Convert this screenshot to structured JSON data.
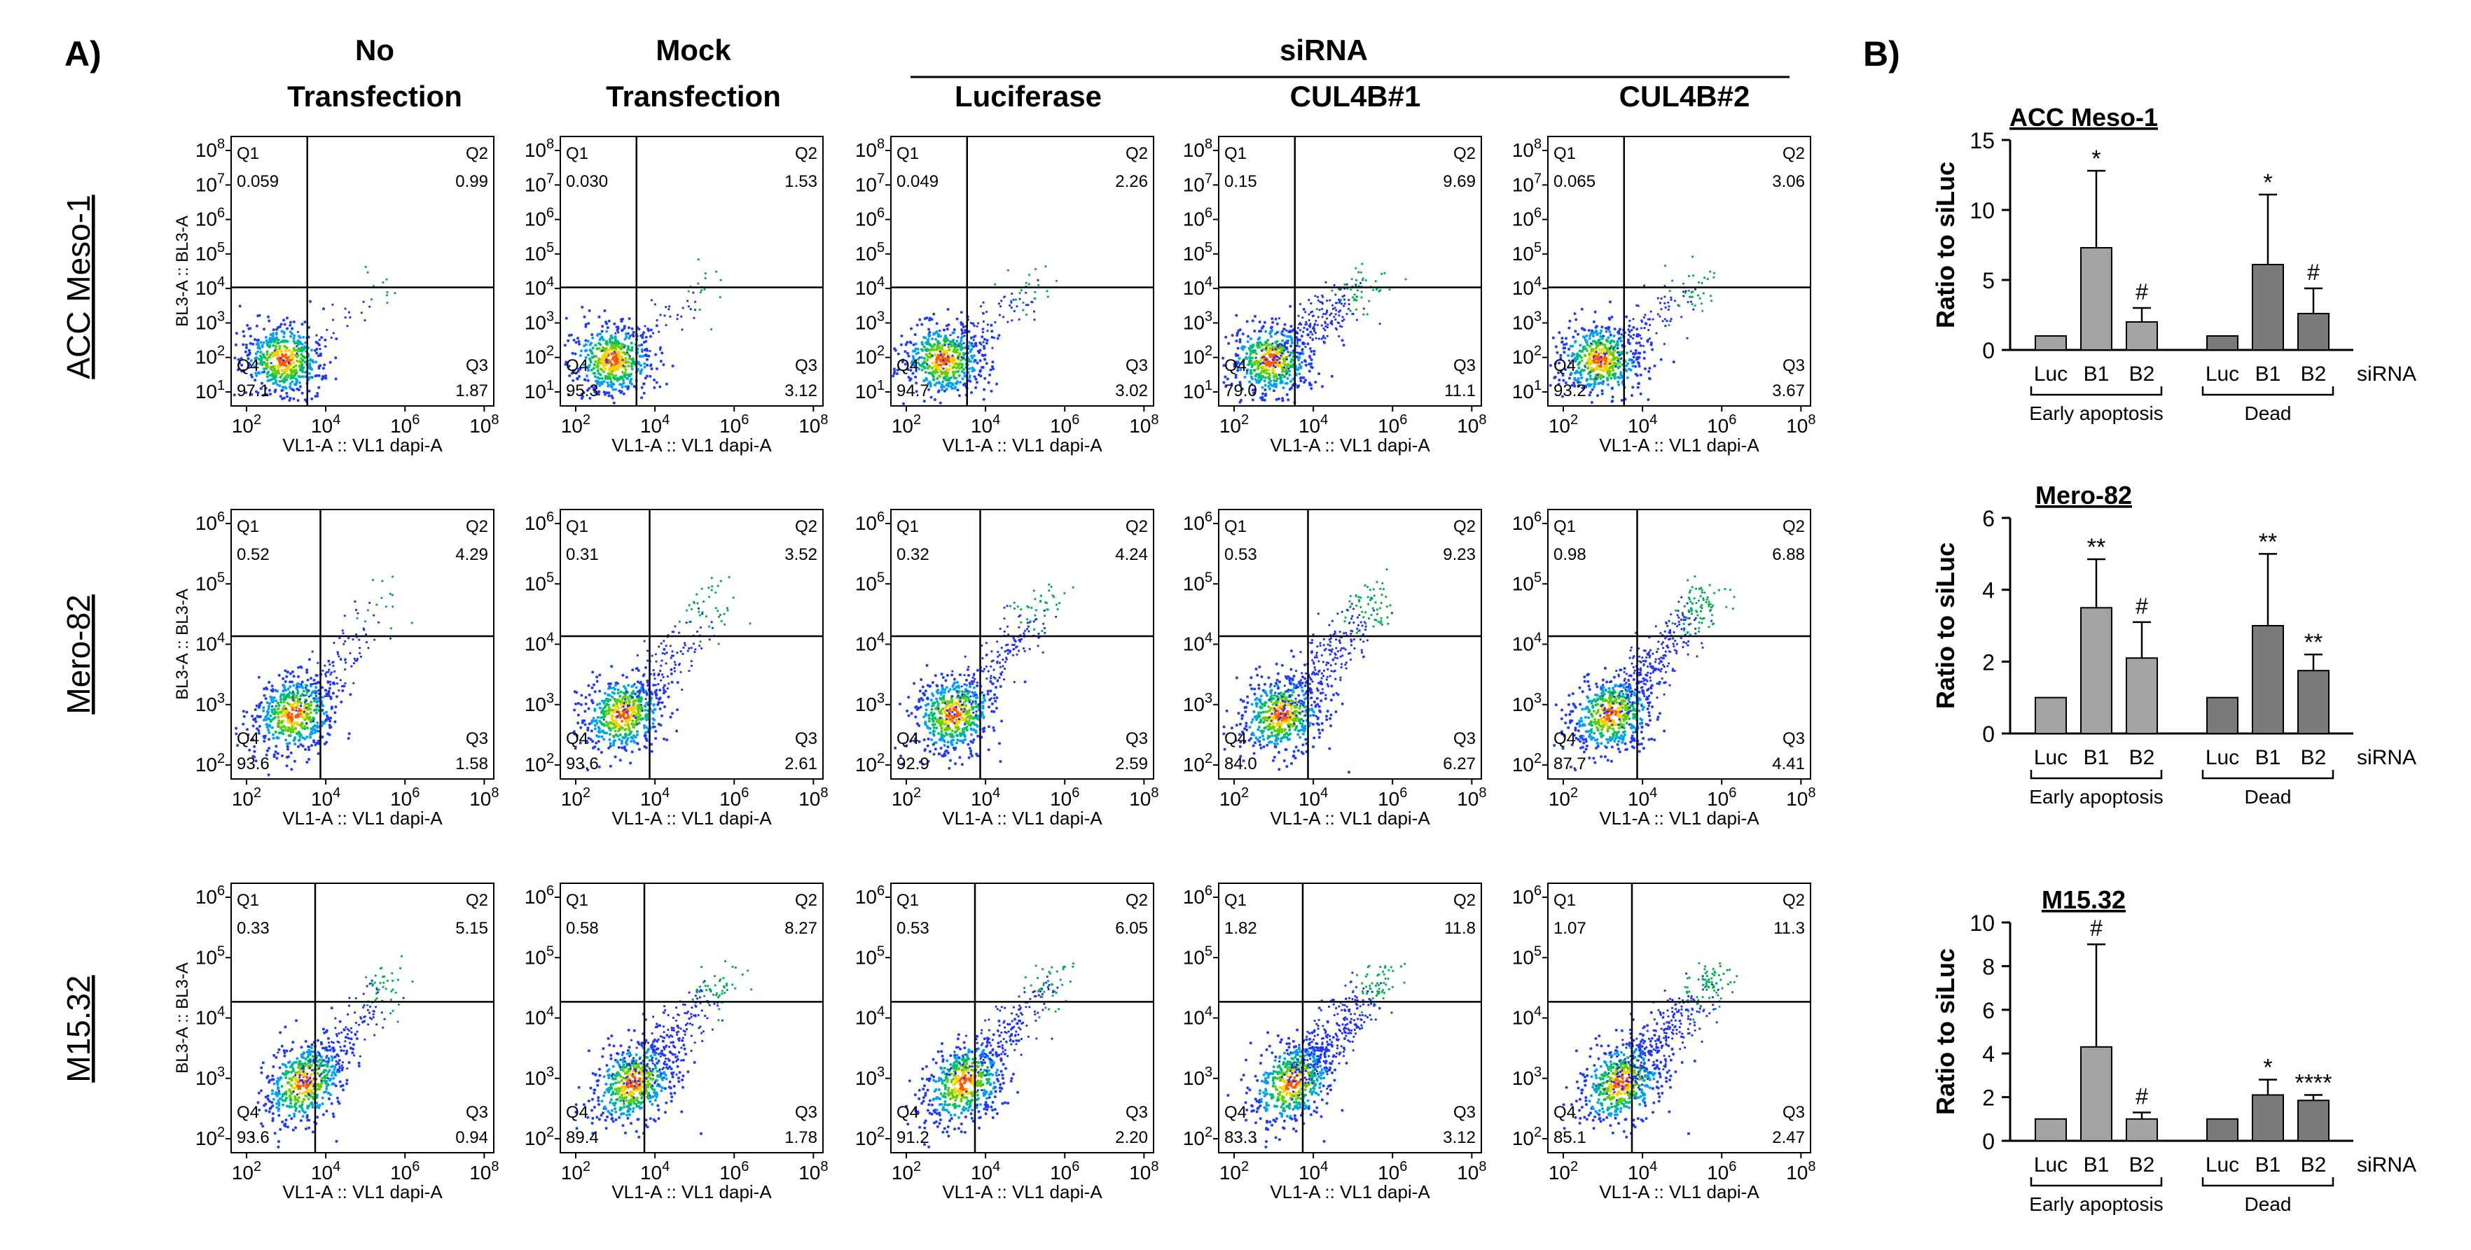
{
  "panel_labels": {
    "a": "A)",
    "b": "B)"
  },
  "column_headers": [
    {
      "line1": "No",
      "line2": "Transfection"
    },
    {
      "line1": "Mock",
      "line2": "Transfection"
    },
    {
      "line1": "",
      "line2": "Luciferase"
    },
    {
      "line1": "",
      "line2": "CUL4B#1"
    },
    {
      "line1": "",
      "line2": "CUL4B#2"
    }
  ],
  "sirna_header": "siRNA",
  "row_labels": [
    "ACC Meso-1",
    "Mero-82",
    "M15.32"
  ],
  "quadrant_names": [
    "Q1",
    "Q2",
    "Q3",
    "Q4"
  ],
  "x_axis_label": "VL1-A :: VL1 dapi-A",
  "y_axis_label": "BL3-A :: BL3-A",
  "x_ticks": [
    "2",
    "4",
    "6",
    "8"
  ],
  "y_ticks_row1": [
    "1",
    "2",
    "3",
    "4",
    "5",
    "6",
    "7",
    "8"
  ],
  "y_ticks_row2": [
    "2",
    "3",
    "4",
    "5",
    "6"
  ],
  "y_ticks_row3": [
    "2",
    "3",
    "4",
    "5",
    "6"
  ],
  "tick_base": "10",
  "flow_plots": [
    [
      {
        "q1": "0.059",
        "q2": "0.99",
        "q3": "1.87",
        "q4": "97.1"
      },
      {
        "q1": "0.030",
        "q2": "1.53",
        "q3": "3.12",
        "q4": "95.3"
      },
      {
        "q1": "0.049",
        "q2": "2.26",
        "q3": "3.02",
        "q4": "94.7"
      },
      {
        "q1": "0.15",
        "q2": "9.69",
        "q3": "11.1",
        "q4": "79.0"
      },
      {
        "q1": "0.065",
        "q2": "3.06",
        "q3": "3.67",
        "q4": "93.2"
      }
    ],
    [
      {
        "q1": "0.52",
        "q2": "4.29",
        "q3": "1.58",
        "q4": "93.6"
      },
      {
        "q1": "0.31",
        "q2": "3.52",
        "q3": "2.61",
        "q4": "93.6"
      },
      {
        "q1": "0.32",
        "q2": "4.24",
        "q3": "2.59",
        "q4": "92.9"
      },
      {
        "q1": "0.53",
        "q2": "9.23",
        "q3": "6.27",
        "q4": "84.0"
      },
      {
        "q1": "0.98",
        "q2": "6.88",
        "q3": "4.41",
        "q4": "87.7"
      }
    ],
    [
      {
        "q1": "0.33",
        "q2": "5.15",
        "q3": "0.94",
        "q4": "93.6"
      },
      {
        "q1": "0.58",
        "q2": "8.27",
        "q3": "1.78",
        "q4": "89.4"
      },
      {
        "q1": "0.53",
        "q2": "6.05",
        "q3": "2.20",
        "q4": "91.2"
      },
      {
        "q1": "1.82",
        "q2": "11.8",
        "q3": "3.12",
        "q4": "83.3"
      },
      {
        "q1": "1.07",
        "q2": "11.3",
        "q3": "2.47",
        "q4": "85.1"
      }
    ]
  ],
  "colors": {
    "bar_early": "#a3a3a3",
    "bar_dead": "#7a7a7a",
    "lines": "#000000"
  },
  "chart_data": [
    {
      "type": "bar",
      "title": "ACC Meso-1",
      "ylabel": "Ratio to siLuc",
      "ylim": [
        0,
        15
      ],
      "yticks": [
        0,
        5,
        10,
        15
      ],
      "categories": [
        "Luc",
        "B1",
        "B2",
        "Luc",
        "B1",
        "B2"
      ],
      "groups": [
        "Early apoptosis",
        "Dead"
      ],
      "xlabel_suffix": "siRNA",
      "values": [
        1,
        7.3,
        2.0,
        1,
        6.1,
        2.6
      ],
      "errors": [
        0,
        5.5,
        1.0,
        0,
        5.0,
        1.8
      ],
      "annotations": [
        "",
        "*",
        "#",
        "",
        "*",
        "#"
      ]
    },
    {
      "type": "bar",
      "title": "Mero-82",
      "ylabel": "Ratio to siLuc",
      "ylim": [
        0,
        6
      ],
      "yticks": [
        0,
        2,
        4,
        6
      ],
      "categories": [
        "Luc",
        "B1",
        "B2",
        "Luc",
        "B1",
        "B2"
      ],
      "groups": [
        "Early apoptosis",
        "Dead"
      ],
      "xlabel_suffix": "siRNA",
      "values": [
        1,
        3.5,
        2.1,
        1,
        3.0,
        1.75
      ],
      "errors": [
        0,
        1.35,
        1.0,
        0,
        2.0,
        0.45
      ],
      "annotations": [
        "",
        "**",
        "#",
        "",
        "**",
        "**"
      ]
    },
    {
      "type": "bar",
      "title": "M15.32",
      "ylabel": "Ratio to siLuc",
      "ylim": [
        0,
        10
      ],
      "yticks": [
        0,
        2,
        4,
        6,
        8,
        10
      ],
      "categories": [
        "Luc",
        "B1",
        "B2",
        "Luc",
        "B1",
        "B2"
      ],
      "groups": [
        "Early apoptosis",
        "Dead"
      ],
      "xlabel_suffix": "siRNA",
      "values": [
        1,
        4.3,
        1.0,
        1,
        2.1,
        1.85
      ],
      "errors": [
        0,
        4.7,
        0.3,
        0,
        0.7,
        0.25
      ],
      "annotations": [
        "",
        "#",
        "#",
        "",
        "*",
        "****"
      ]
    }
  ]
}
